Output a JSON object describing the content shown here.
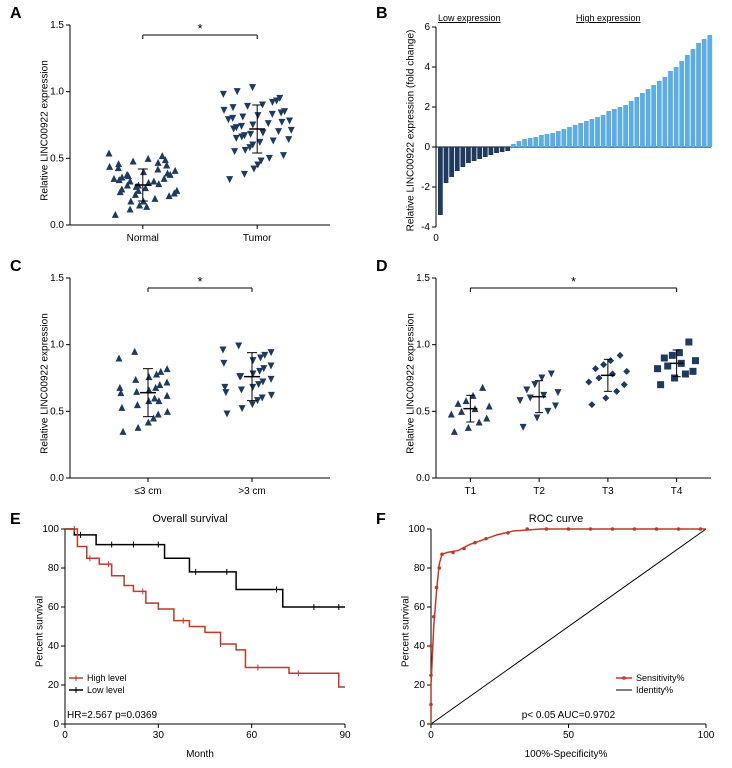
{
  "colors": {
    "navy": "#1e3a5f",
    "lightblue": "#5dade2",
    "red": "#c0392b",
    "black": "#000000",
    "gray_axis": "#555555"
  },
  "panelA": {
    "letter": "A",
    "ylabel": "Relative LINC00922 expression",
    "xticks": [
      "Normal",
      "Tumor"
    ],
    "yticks": [
      0.0,
      0.5,
      1.0,
      1.5
    ],
    "ylim": [
      0,
      1.5
    ],
    "significance": "*",
    "marker_color": "#1e3a5f",
    "groups": {
      "Normal": {
        "marker": "triangle-up",
        "points": [
          0.08,
          0.12,
          0.15,
          0.18,
          0.14,
          0.2,
          0.22,
          0.25,
          0.18,
          0.23,
          0.26,
          0.28,
          0.31,
          0.24,
          0.27,
          0.3,
          0.33,
          0.29,
          0.32,
          0.35,
          0.26,
          0.34,
          0.36,
          0.38,
          0.3,
          0.33,
          0.39,
          0.41,
          0.35,
          0.43,
          0.37,
          0.4,
          0.42,
          0.45,
          0.38,
          0.44,
          0.46,
          0.48,
          0.5,
          0.47,
          0.52,
          0.49,
          0.54
        ],
        "mean": 0.3,
        "err": 0.12
      },
      "Tumor": {
        "marker": "triangle-down",
        "points": [
          0.34,
          0.38,
          0.42,
          0.45,
          0.48,
          0.5,
          0.52,
          0.55,
          0.56,
          0.58,
          0.6,
          0.62,
          0.63,
          0.64,
          0.65,
          0.66,
          0.67,
          0.68,
          0.69,
          0.7,
          0.71,
          0.72,
          0.73,
          0.74,
          0.75,
          0.76,
          0.77,
          0.78,
          0.79,
          0.8,
          0.81,
          0.82,
          0.83,
          0.84,
          0.85,
          0.86,
          0.88,
          0.89,
          0.9,
          0.92,
          0.93,
          0.95,
          0.98,
          1.0,
          1.03
        ],
        "mean": 0.72,
        "err": 0.18
      }
    }
  },
  "panelB": {
    "letter": "B",
    "ylabel": "Relative LINC00922 expression (fold change)",
    "xticks": [
      0
    ],
    "yticks": [
      -4,
      -2,
      0,
      2,
      4,
      6
    ],
    "ylim": [
      -4,
      6
    ],
    "low_label": "Low expression",
    "high_label": "High expression",
    "low_color": "#1e3a5f",
    "high_color": "#5dade2",
    "low_values": [
      -3.4,
      -1.8,
      -1.5,
      -1.2,
      -1.0,
      -0.8,
      -0.7,
      -0.6,
      -0.5,
      -0.4,
      -0.3,
      -0.25,
      -0.2
    ],
    "high_values": [
      0.15,
      0.3,
      0.4,
      0.45,
      0.5,
      0.6,
      0.65,
      0.7,
      0.8,
      0.9,
      1.0,
      1.1,
      1.2,
      1.3,
      1.4,
      1.5,
      1.6,
      1.8,
      1.9,
      2.0,
      2.1,
      2.3,
      2.5,
      2.7,
      2.9,
      3.1,
      3.3,
      3.5,
      3.8,
      4.0,
      4.3,
      4.6,
      4.9,
      5.2,
      5.4,
      5.6
    ]
  },
  "panelC": {
    "letter": "C",
    "ylabel": "Relative LINC00922 expression",
    "xticks": [
      "≤3 cm",
      ">3 cm"
    ],
    "yticks": [
      0.0,
      0.5,
      1.0,
      1.5
    ],
    "ylim": [
      0,
      1.5
    ],
    "significance": "*",
    "marker_color": "#1e3a5f",
    "groups": {
      "le3": {
        "marker": "triangle-up",
        "points": [
          0.35,
          0.38,
          0.42,
          0.45,
          0.48,
          0.5,
          0.53,
          0.55,
          0.58,
          0.6,
          0.58,
          0.62,
          0.64,
          0.65,
          0.66,
          0.68,
          0.7,
          0.72,
          0.68,
          0.74,
          0.76,
          0.78,
          0.8,
          0.82,
          0.9,
          0.95
        ],
        "mean": 0.64,
        "err": 0.18
      },
      "gt3": {
        "marker": "triangle-down",
        "points": [
          0.48,
          0.52,
          0.55,
          0.58,
          0.6,
          0.62,
          0.64,
          0.66,
          0.68,
          0.7,
          0.72,
          0.74,
          0.68,
          0.76,
          0.78,
          0.8,
          0.82,
          0.84,
          0.86,
          0.76,
          0.88,
          0.9,
          0.92,
          0.94,
          0.96,
          0.99
        ],
        "mean": 0.76,
        "err": 0.18
      }
    }
  },
  "panelD": {
    "letter": "D",
    "ylabel": "Relative LINC00922 expression",
    "xticks": [
      "T1",
      "T2",
      "T3",
      "T4"
    ],
    "yticks": [
      0.0,
      0.5,
      1.0,
      1.5
    ],
    "ylim": [
      0,
      1.5
    ],
    "significance": "*",
    "marker_color": "#1e3a5f",
    "groups": {
      "T1": {
        "marker": "triangle-up",
        "points": [
          0.35,
          0.38,
          0.42,
          0.45,
          0.48,
          0.5,
          0.52,
          0.54,
          0.56,
          0.58,
          0.62,
          0.68
        ],
        "mean": 0.52,
        "err": 0.1
      },
      "T2": {
        "marker": "triangle-down",
        "points": [
          0.38,
          0.45,
          0.5,
          0.54,
          0.58,
          0.6,
          0.62,
          0.64,
          0.66,
          0.7,
          0.75,
          0.78
        ],
        "mean": 0.61,
        "err": 0.12
      },
      "T3": {
        "marker": "diamond",
        "points": [
          0.55,
          0.6,
          0.65,
          0.7,
          0.72,
          0.75,
          0.78,
          0.8,
          0.82,
          0.85,
          0.88,
          0.92
        ],
        "mean": 0.77,
        "err": 0.12
      },
      "T4": {
        "marker": "square",
        "points": [
          0.7,
          0.75,
          0.78,
          0.8,
          0.82,
          0.84,
          0.86,
          0.88,
          0.9,
          0.92,
          0.94,
          1.02
        ],
        "mean": 0.86,
        "err": 0.1
      }
    }
  },
  "panelE": {
    "letter": "E",
    "title": "Overall survival",
    "ylabel": "Percent survival",
    "xlabel": "Month",
    "xticks": [
      0,
      30,
      60,
      90
    ],
    "yticks": [
      0,
      20,
      40,
      60,
      80,
      100
    ],
    "xlim": [
      0,
      90
    ],
    "ylim": [
      0,
      100
    ],
    "hr_text": "HR=2.567 p=0.0369",
    "legend": {
      "high": "High level",
      "low": "Low level"
    },
    "high_color": "#c0392b",
    "low_color": "#000000",
    "high_curve": [
      [
        0,
        100
      ],
      [
        4,
        91
      ],
      [
        7,
        85
      ],
      [
        11,
        82
      ],
      [
        15,
        76
      ],
      [
        19,
        71
      ],
      [
        22,
        68
      ],
      [
        26,
        62
      ],
      [
        30,
        59
      ],
      [
        35,
        53
      ],
      [
        40,
        50
      ],
      [
        45,
        47
      ],
      [
        50,
        41
      ],
      [
        55,
        38
      ],
      [
        58,
        29
      ],
      [
        65,
        29
      ],
      [
        72,
        26
      ],
      [
        80,
        26
      ],
      [
        88,
        19
      ],
      [
        90,
        19
      ]
    ],
    "low_curve": [
      [
        0,
        100
      ],
      [
        3,
        97
      ],
      [
        10,
        92
      ],
      [
        18,
        92
      ],
      [
        25,
        92
      ],
      [
        32,
        85
      ],
      [
        40,
        78
      ],
      [
        48,
        78
      ],
      [
        55,
        69
      ],
      [
        62,
        69
      ],
      [
        70,
        60
      ],
      [
        80,
        60
      ],
      [
        90,
        60
      ]
    ],
    "high_ticks": [
      3,
      8,
      14,
      25,
      38,
      50,
      62,
      75
    ],
    "low_ticks": [
      5,
      15,
      22,
      30,
      42,
      52,
      68,
      80,
      88
    ]
  },
  "panelF": {
    "letter": "F",
    "title": "ROC curve",
    "ylabel": "Percent survival",
    "xlabel": "100%-Specificity%",
    "xticks": [
      0,
      50,
      100
    ],
    "yticks": [
      0,
      20,
      40,
      60,
      80,
      100
    ],
    "xlim": [
      0,
      100
    ],
    "ylim": [
      0,
      100
    ],
    "auc_text": "p< 0.05 AUC=0.9702",
    "legend": {
      "sens": "Sensitivity%",
      "ident": "Identity%"
    },
    "sens_color": "#c0392b",
    "ident_color": "#000000",
    "roc_curve": [
      [
        0,
        0
      ],
      [
        0,
        20
      ],
      [
        1,
        50
      ],
      [
        2,
        68
      ],
      [
        3,
        82
      ],
      [
        4,
        87
      ],
      [
        6,
        88
      ],
      [
        10,
        89
      ],
      [
        14,
        92
      ],
      [
        18,
        94
      ],
      [
        24,
        97
      ],
      [
        30,
        99
      ],
      [
        40,
        100
      ],
      [
        50,
        100
      ],
      [
        60,
        100
      ],
      [
        70,
        100
      ],
      [
        80,
        100
      ],
      [
        90,
        100
      ],
      [
        100,
        100
      ]
    ],
    "roc_markers": [
      [
        0,
        10
      ],
      [
        0,
        25
      ],
      [
        0,
        40
      ],
      [
        1,
        55
      ],
      [
        2,
        70
      ],
      [
        3,
        80
      ],
      [
        4,
        87
      ],
      [
        8,
        88
      ],
      [
        12,
        90
      ],
      [
        16,
        93
      ],
      [
        20,
        95
      ],
      [
        28,
        98
      ],
      [
        35,
        100
      ],
      [
        42,
        100
      ],
      [
        50,
        100
      ],
      [
        58,
        100
      ],
      [
        66,
        100
      ],
      [
        74,
        100
      ],
      [
        82,
        100
      ],
      [
        90,
        100
      ],
      [
        98,
        100
      ]
    ]
  }
}
